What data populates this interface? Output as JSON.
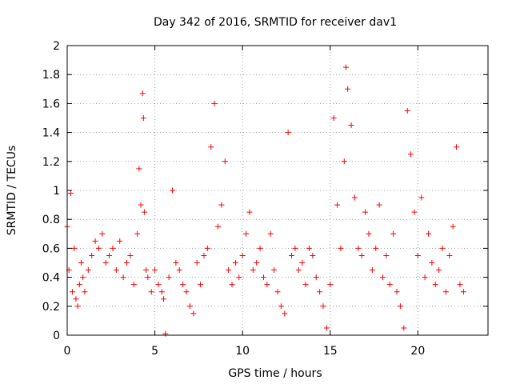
{
  "chart_data": {
    "type": "scatter",
    "title": "Day 342 of 2016, SRMTID for receiver dav1",
    "xlabel": "GPS time / hours",
    "ylabel": "SRMTID / TECUs",
    "xlim": [
      0,
      24
    ],
    "ylim": [
      0,
      2
    ],
    "xticks": [
      0,
      5,
      10,
      15,
      20
    ],
    "xtick_labels": [
      "0",
      "5",
      "10",
      "15",
      "20"
    ],
    "yticks": [
      0,
      0.2,
      0.4,
      0.6,
      0.8,
      1,
      1.2,
      1.4,
      1.6,
      1.8,
      2
    ],
    "ytick_labels": [
      "0",
      "0.2",
      "0.4",
      "0.6",
      "0.8",
      "1",
      "1.2",
      "1.4",
      "1.6",
      "1.8",
      "2"
    ],
    "grid": true,
    "marker": "+",
    "color": "#ff0000",
    "series": [
      {
        "name": "SRMTID",
        "x": [
          0.0,
          0.1,
          0.2,
          0.3,
          0.4,
          0.5,
          0.6,
          0.7,
          0.8,
          0.9,
          1.0,
          1.2,
          1.4,
          1.6,
          1.8,
          2.0,
          2.2,
          2.4,
          2.6,
          2.8,
          3.0,
          3.2,
          3.4,
          3.6,
          3.8,
          4.0,
          4.1,
          4.2,
          4.3,
          4.35,
          4.4,
          4.5,
          4.6,
          4.8,
          5.0,
          5.2,
          5.4,
          5.5,
          5.6,
          5.8,
          6.0,
          6.2,
          6.4,
          6.6,
          6.8,
          7.0,
          7.2,
          7.4,
          7.6,
          7.8,
          8.0,
          8.2,
          8.4,
          8.6,
          8.8,
          9.0,
          9.2,
          9.4,
          9.6,
          9.8,
          10.0,
          10.2,
          10.4,
          10.6,
          10.8,
          11.0,
          11.2,
          11.4,
          11.6,
          11.8,
          12.0,
          12.2,
          12.4,
          12.6,
          12.8,
          13.0,
          13.2,
          13.4,
          13.6,
          13.8,
          14.0,
          14.2,
          14.4,
          14.6,
          14.8,
          15.0,
          15.2,
          15.4,
          15.6,
          15.8,
          15.9,
          16.0,
          16.2,
          16.4,
          16.6,
          16.8,
          17.0,
          17.2,
          17.4,
          17.6,
          17.8,
          18.0,
          18.2,
          18.4,
          18.6,
          18.8,
          19.0,
          19.2,
          19.4,
          19.6,
          19.8,
          20.0,
          20.2,
          20.4,
          20.6,
          20.8,
          21.0,
          21.2,
          21.4,
          21.6,
          21.8,
          22.0,
          22.2,
          22.4,
          22.6
        ],
        "y": [
          0.75,
          0.45,
          0.98,
          0.3,
          0.6,
          0.25,
          0.2,
          0.35,
          0.5,
          0.4,
          0.3,
          0.45,
          0.55,
          0.65,
          0.6,
          0.7,
          0.5,
          0.55,
          0.6,
          0.45,
          0.65,
          0.4,
          0.5,
          0.55,
          0.35,
          0.7,
          1.15,
          0.9,
          1.67,
          1.5,
          0.85,
          0.45,
          0.4,
          0.3,
          0.45,
          0.35,
          0.3,
          0.25,
          0.01,
          0.4,
          1.0,
          0.5,
          0.45,
          0.35,
          0.3,
          0.2,
          0.15,
          0.5,
          0.35,
          0.55,
          0.6,
          1.3,
          1.6,
          0.75,
          0.9,
          1.2,
          0.45,
          0.35,
          0.5,
          0.4,
          0.55,
          0.7,
          0.85,
          0.45,
          0.5,
          0.6,
          0.4,
          0.35,
          0.7,
          0.45,
          0.3,
          0.2,
          0.15,
          1.4,
          0.55,
          0.6,
          0.45,
          0.5,
          0.35,
          0.6,
          0.55,
          0.4,
          0.3,
          0.2,
          0.05,
          0.35,
          1.5,
          0.9,
          0.6,
          1.2,
          1.85,
          1.7,
          1.45,
          0.95,
          0.6,
          0.55,
          0.85,
          0.7,
          0.45,
          0.6,
          0.9,
          0.4,
          0.55,
          0.35,
          0.7,
          0.3,
          0.2,
          0.05,
          1.55,
          1.25,
          0.85,
          0.55,
          0.95,
          0.4,
          0.7,
          0.5,
          0.35,
          0.45,
          0.6,
          0.3,
          0.55,
          0.75,
          1.3,
          0.35,
          0.3
        ]
      }
    ]
  }
}
